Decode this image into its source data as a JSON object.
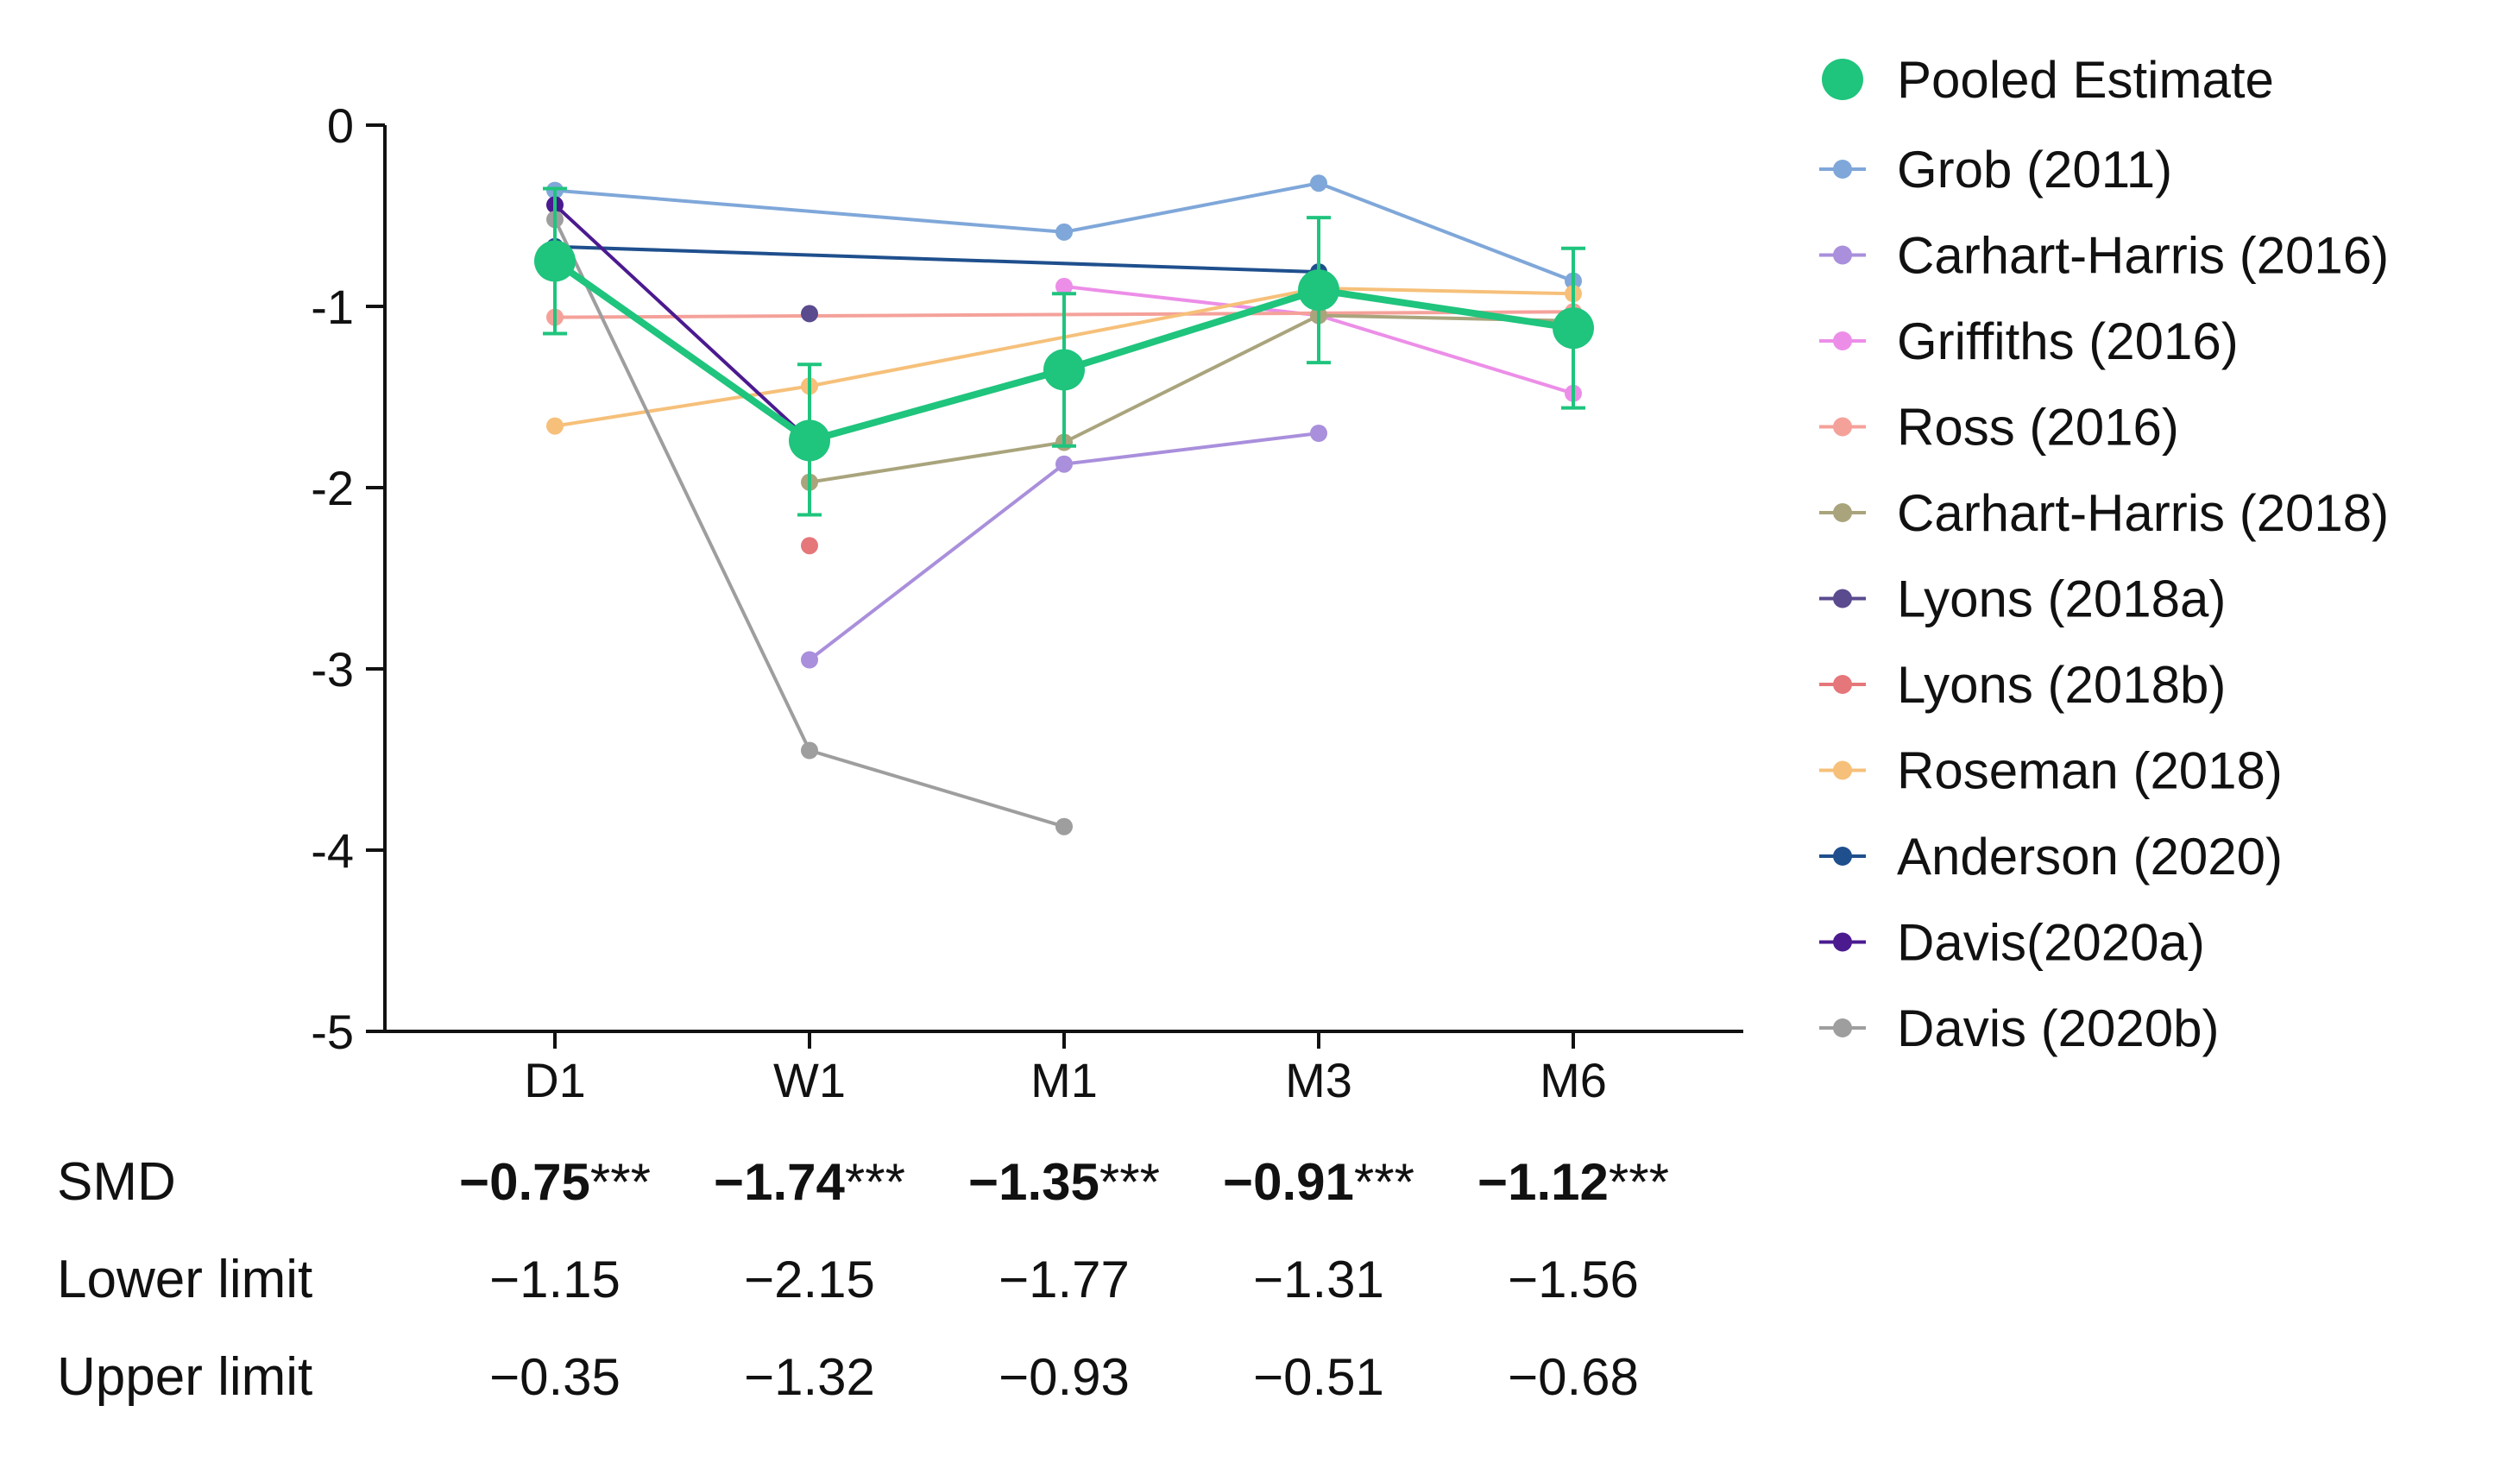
{
  "chart_data": {
    "type": "line",
    "categories": [
      "D1",
      "W1",
      "M1",
      "M3",
      "M6"
    ],
    "ylim": [
      -5,
      0
    ],
    "yticks": [
      0,
      -1,
      -2,
      -3,
      -4,
      -5
    ],
    "ytick_labels": [
      "0",
      "-1",
      "-2",
      "-3",
      "-4",
      "-5"
    ],
    "legend_position": "right",
    "pooled": {
      "name": "Pooled Estimate",
      "color": "#1fc47d",
      "values": [
        -0.75,
        -1.74,
        -1.35,
        -0.91,
        -1.12
      ],
      "lower": [
        -1.15,
        -2.15,
        -1.77,
        -1.31,
        -1.56
      ],
      "upper": [
        -0.35,
        -1.32,
        -0.93,
        -0.51,
        -0.68
      ]
    },
    "series": [
      {
        "name": "Grob (2011)",
        "color": "#7fa7d9",
        "values": [
          -0.36,
          null,
          -0.59,
          -0.32,
          -0.86
        ]
      },
      {
        "name": "Carhart-Harris (2016)",
        "color": "#a98fdc",
        "values": [
          null,
          -2.95,
          -1.87,
          -1.7,
          null
        ]
      },
      {
        "name": "Griffiths (2016)",
        "color": "#ec8ee8",
        "values": [
          null,
          null,
          -0.89,
          -1.05,
          -1.48
        ]
      },
      {
        "name": "Ross (2016)",
        "color": "#f4a19a",
        "values": [
          -1.06,
          null,
          null,
          null,
          -1.03
        ]
      },
      {
        "name": "Carhart-Harris (2018)",
        "color": "#a9a47c",
        "values": [
          null,
          -1.97,
          -1.75,
          -1.05,
          -1.08
        ]
      },
      {
        "name": "Lyons (2018a)",
        "color": "#5a4a8e",
        "values": [
          null,
          -1.04,
          null,
          null,
          null
        ]
      },
      {
        "name": "Lyons (2018b)",
        "color": "#e5767a",
        "values": [
          null,
          -2.32,
          null,
          null,
          null
        ]
      },
      {
        "name": "Roseman (2018)",
        "color": "#f6c07a",
        "values": [
          -1.66,
          -1.44,
          null,
          -0.9,
          -0.93
        ]
      },
      {
        "name": "Anderson (2020)",
        "color": "#1f4f8d",
        "values": [
          -0.67,
          null,
          null,
          -0.81,
          null
        ]
      },
      {
        "name": "Davis(2020a)",
        "color": "#4b1a8f",
        "values": [
          -0.44,
          -1.74,
          null,
          null,
          null
        ]
      },
      {
        "name": "Davis (2020b)",
        "color": "#9e9e9e",
        "values": [
          -0.52,
          -3.45,
          -3.87,
          null,
          null
        ]
      }
    ],
    "table": {
      "rows": [
        {
          "label": "SMD",
          "bold_values": [
            "−0.75",
            "−1.74",
            "−1.35",
            "−0.91",
            "−1.12"
          ],
          "suffix": "***"
        },
        {
          "label": "Lower limit",
          "values": [
            "−1.15",
            "−2.15",
            "−1.77",
            "−1.31",
            "−1.56"
          ]
        },
        {
          "label": "Upper limit",
          "values": [
            "−0.35",
            "−1.32",
            "−0.93",
            "−0.51",
            "−0.68"
          ]
        }
      ]
    }
  }
}
